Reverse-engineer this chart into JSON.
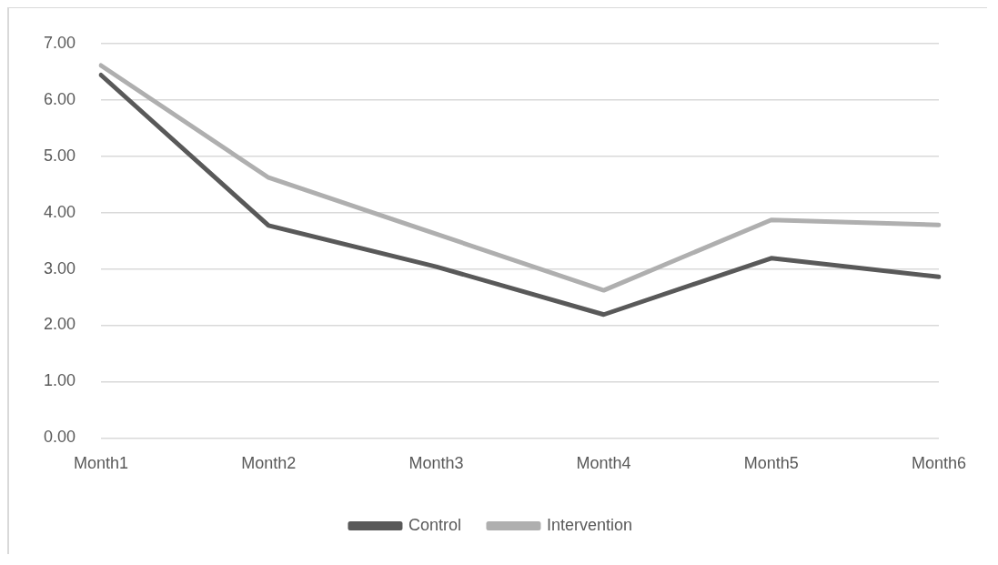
{
  "chart_data": {
    "type": "line",
    "categories": [
      "Month1",
      "Month2",
      "Month3",
      "Month4",
      "Month5",
      "Month6"
    ],
    "series": [
      {
        "name": "Control",
        "color": "#595959",
        "values": [
          6.44,
          3.77,
          3.04,
          2.19,
          3.19,
          2.86
        ]
      },
      {
        "name": "Intervention",
        "color": "#afafaf",
        "values": [
          6.61,
          4.62,
          3.62,
          2.62,
          3.87,
          3.78
        ]
      }
    ],
    "ylim": [
      0,
      7
    ],
    "yticks": [
      {
        "value": 0,
        "label": "0.00"
      },
      {
        "value": 1,
        "label": "1.00"
      },
      {
        "value": 2,
        "label": "2.00"
      },
      {
        "value": 3,
        "label": "3.00"
      },
      {
        "value": 4,
        "label": "4.00"
      },
      {
        "value": 5,
        "label": "5.00"
      },
      {
        "value": 6,
        "label": "6.00"
      },
      {
        "value": 7,
        "label": "7.00"
      }
    ],
    "grid": "y",
    "legend": "bottom",
    "marker": "none",
    "line_style": "solid"
  }
}
